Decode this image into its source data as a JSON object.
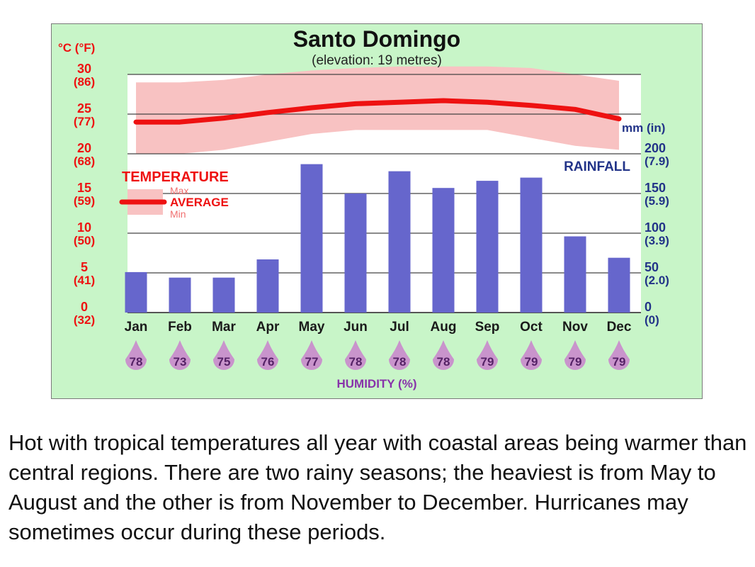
{
  "chart_data": {
    "type": "bar",
    "title": "Santo Domingo",
    "subtitle": "(elevation: 19 metres)",
    "categories": [
      "Jan",
      "Feb",
      "Mar",
      "Apr",
      "May",
      "Jun",
      "Jul",
      "Aug",
      "Sep",
      "Oct",
      "Nov",
      "Dec"
    ],
    "rainfall": {
      "label": "RAINFALL",
      "unit_label": "mm (in)",
      "values": [
        51,
        44,
        44,
        67,
        187,
        150,
        178,
        157,
        166,
        170,
        96,
        69
      ],
      "ylim": [
        0,
        200
      ],
      "ticks": [
        {
          "value": 0,
          "mm": "0",
          "in": "(0)"
        },
        {
          "value": 50,
          "mm": "50",
          "in": "(2.0)"
        },
        {
          "value": 100,
          "mm": "100",
          "in": "(3.9)"
        },
        {
          "value": 150,
          "mm": "150",
          "in": "(5.9)"
        },
        {
          "value": 200,
          "mm": "200",
          "in": "(7.9)"
        }
      ]
    },
    "temperature": {
      "unit_label": "°C (°F)",
      "ylim": [
        0,
        30
      ],
      "ticks": [
        {
          "value": 0,
          "c": "0",
          "f": "(32)"
        },
        {
          "value": 5,
          "c": "5",
          "f": "(41)"
        },
        {
          "value": 10,
          "c": "10",
          "f": "(50)"
        },
        {
          "value": 15,
          "c": "15",
          "f": "(59)"
        },
        {
          "value": 20,
          "c": "20",
          "f": "(68)"
        },
        {
          "value": 25,
          "c": "25",
          "f": "(77)"
        },
        {
          "value": 30,
          "c": "30",
          "f": "(86)"
        }
      ],
      "average": [
        24.0,
        24.0,
        24.5,
        25.2,
        25.8,
        26.3,
        26.5,
        26.7,
        26.5,
        26.1,
        25.6,
        24.4
      ],
      "max": [
        29.0,
        29.0,
        29.3,
        30.0,
        30.5,
        30.8,
        31.0,
        31.0,
        31.0,
        30.8,
        30.0,
        29.2
      ],
      "min": [
        20.0,
        20.0,
        20.5,
        21.5,
        22.5,
        23.0,
        23.0,
        23.0,
        23.0,
        22.0,
        21.0,
        20.5
      ]
    },
    "legend": {
      "title": "TEMPERATURE",
      "max_label": "Max",
      "average_label": "AVERAGE",
      "min_label": "Min"
    },
    "humidity": {
      "label": "HUMIDITY (%)",
      "values": [
        "78",
        "73",
        "75",
        "76",
        "77",
        "78",
        "78",
        "78",
        "79",
        "79",
        "79",
        "79"
      ]
    },
    "colors": {
      "background": "#c8f5c8",
      "bar": "#6666cc",
      "average_line": "#ee1111",
      "range_band": "#f8c2c2",
      "temp_axis": "#ee1111",
      "rain_axis": "#223388",
      "humidity_drop": "#c994cc",
      "humidity_text": "#552266",
      "humidity_label": "#8833aa"
    }
  },
  "description": "Hot with tropical temperatures all year with coastal areas being warmer than central regions. There are two rainy seasons; the heaviest is from May to August and the other is from November to December. Hurricanes may sometimes occur during these periods."
}
